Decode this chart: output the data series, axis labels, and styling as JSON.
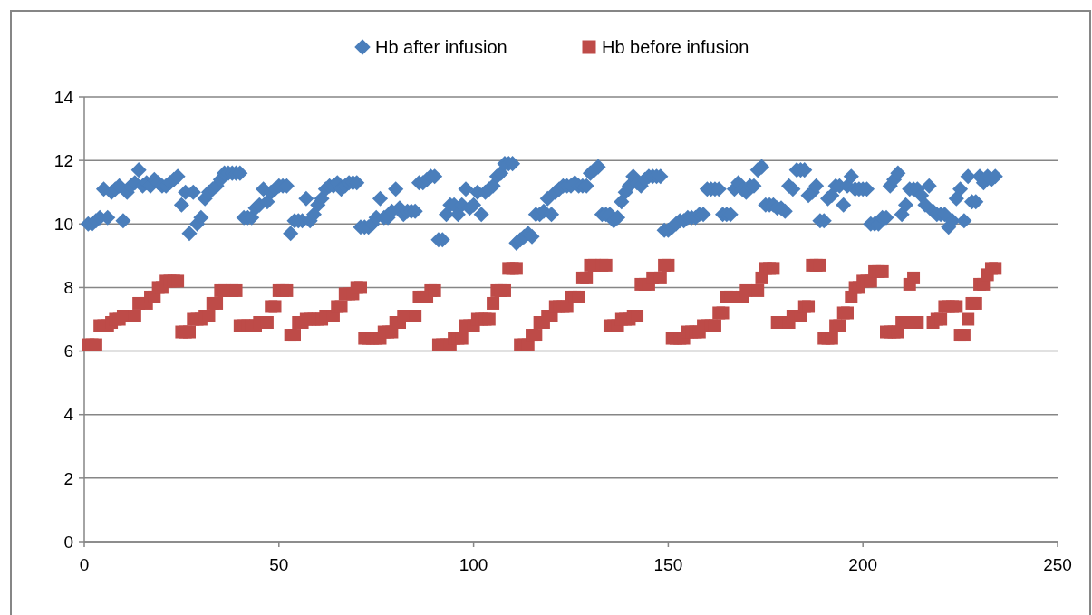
{
  "chart_data": {
    "type": "scatter",
    "legend": "top",
    "grid": "y",
    "xlim": [
      0,
      250
    ],
    "xticks": [
      0,
      50,
      100,
      150,
      200,
      250
    ],
    "ylim": [
      0,
      14
    ],
    "yticks": [
      0,
      2,
      4,
      6,
      8,
      10,
      12,
      14
    ],
    "x": [
      1,
      2,
      3,
      4,
      5,
      6,
      7,
      8,
      9,
      10,
      11,
      12,
      13,
      14,
      15,
      16,
      17,
      18,
      19,
      20,
      21,
      22,
      23,
      24,
      25,
      26,
      27,
      28,
      29,
      30,
      31,
      32,
      33,
      34,
      35,
      36,
      37,
      38,
      39,
      40,
      41,
      42,
      43,
      44,
      45,
      46,
      47,
      48,
      49,
      50,
      51,
      52,
      53,
      54,
      55,
      56,
      57,
      58,
      59,
      60,
      61,
      62,
      63,
      64,
      65,
      66,
      67,
      68,
      69,
      70,
      71,
      72,
      73,
      74,
      75,
      76,
      77,
      78,
      79,
      80,
      81,
      82,
      83,
      84,
      85,
      86,
      87,
      88,
      89,
      90,
      91,
      92,
      93,
      94,
      95,
      96,
      97,
      98,
      99,
      100,
      101,
      102,
      103,
      104,
      105,
      106,
      107,
      108,
      109,
      110,
      111,
      112,
      113,
      114,
      115,
      116,
      117,
      118,
      119,
      120,
      121,
      122,
      123,
      124,
      125,
      126,
      127,
      128,
      129,
      130,
      131,
      132,
      133,
      134,
      135,
      136,
      137,
      138,
      139,
      140,
      141,
      142,
      143,
      144,
      145,
      146,
      147,
      148,
      149,
      150,
      151,
      152,
      153,
      154,
      155,
      156,
      157,
      158,
      159,
      160,
      161,
      162,
      163,
      164,
      165,
      166,
      167,
      168,
      169,
      170,
      171,
      172,
      173,
      174,
      175,
      176,
      177,
      178,
      179,
      180,
      181,
      182,
      183,
      184,
      185,
      186,
      187,
      188,
      189,
      190,
      191,
      192,
      193,
      194,
      195,
      196,
      197,
      198,
      199,
      200,
      201,
      202,
      203,
      204,
      205,
      206,
      207,
      208,
      209,
      210,
      211,
      212,
      213,
      214,
      215,
      216,
      217,
      218,
      219,
      220,
      221,
      222,
      223,
      224,
      225,
      226,
      227,
      228,
      229,
      230,
      231,
      232,
      233,
      234
    ],
    "series": [
      {
        "name": "Hb after infusion",
        "color": "#4a7ebb",
        "marker": "diamond",
        "values": [
          10.0,
          10.0,
          10.1,
          10.2,
          11.1,
          10.2,
          11.0,
          11.1,
          11.2,
          10.1,
          11.0,
          11.2,
          11.3,
          11.7,
          11.2,
          11.3,
          11.2,
          11.4,
          11.3,
          11.2,
          11.2,
          11.3,
          11.4,
          11.5,
          10.6,
          11.0,
          9.7,
          11.0,
          10.0,
          10.2,
          10.8,
          11.0,
          11.1,
          11.2,
          11.4,
          11.6,
          11.6,
          11.6,
          11.6,
          11.6,
          10.2,
          10.2,
          10.2,
          10.5,
          10.6,
          11.1,
          10.7,
          11.0,
          11.1,
          11.2,
          11.2,
          11.2,
          9.7,
          10.1,
          10.1,
          10.1,
          10.8,
          10.1,
          10.3,
          10.6,
          10.8,
          11.1,
          11.2,
          11.2,
          11.3,
          11.1,
          11.2,
          11.3,
          11.3,
          11.3,
          9.9,
          9.9,
          9.9,
          10.0,
          10.2,
          10.8,
          10.2,
          10.2,
          10.4,
          11.1,
          10.5,
          10.3,
          10.4,
          10.4,
          10.4,
          11.3,
          11.3,
          11.4,
          11.5,
          11.5,
          9.5,
          9.5,
          10.3,
          10.6,
          10.6,
          10.3,
          10.6,
          11.1,
          10.5,
          10.6,
          11.0,
          10.3,
          11.0,
          11.1,
          11.2,
          11.5,
          11.6,
          11.9,
          11.9,
          11.9,
          9.4,
          9.5,
          9.6,
          9.7,
          9.6,
          10.3,
          10.3,
          10.4,
          10.8,
          10.3,
          11.0,
          11.1,
          11.2,
          11.2,
          11.2,
          11.3,
          11.2,
          11.2,
          11.2,
          11.6,
          11.7,
          11.8,
          10.3,
          10.3,
          10.3,
          10.1,
          10.2,
          10.7,
          11.0,
          11.2,
          11.5,
          11.3,
          11.2,
          11.4,
          11.5,
          11.5,
          11.5,
          11.5,
          9.8,
          9.8,
          9.9,
          10.0,
          10.1,
          10.1,
          10.2,
          10.2,
          10.2,
          10.3,
          10.3,
          11.1,
          11.1,
          11.1,
          11.1,
          10.3,
          10.3,
          10.3,
          11.1,
          11.3,
          11.1,
          11.0,
          11.2,
          11.2,
          11.7,
          11.8,
          10.6,
          10.6,
          10.6,
          10.5,
          10.5,
          10.4,
          11.2,
          11.1,
          11.7,
          11.7,
          11.7,
          10.9,
          11.0,
          11.2,
          10.1,
          10.1,
          10.8,
          10.9,
          11.2,
          11.2,
          10.6,
          11.2,
          11.5,
          11.1,
          11.1,
          11.1,
          11.1,
          10.0,
          10.0,
          10.0,
          10.2,
          10.2,
          11.2,
          11.4,
          11.6,
          10.3,
          10.6,
          11.1,
          11.1,
          11.1,
          10.9,
          10.6,
          11.2,
          10.4,
          10.3,
          10.3,
          10.3,
          9.9,
          10.1,
          10.8,
          11.1,
          10.1,
          11.5,
          10.7,
          10.7,
          11.5,
          11.3,
          11.5,
          11.4,
          11.5
        ]
      },
      {
        "name": "Hb before infusion",
        "color": "#be4b48",
        "marker": "square",
        "x": [
          1,
          2,
          3,
          4,
          5,
          6,
          7,
          8,
          9,
          10,
          13,
          14,
          16,
          17,
          18,
          19,
          20,
          21,
          22,
          23,
          24,
          25,
          26,
          27,
          28,
          29,
          30,
          31,
          32,
          33,
          34,
          35,
          36,
          38,
          39,
          40,
          41,
          42,
          43,
          44,
          45,
          47,
          48,
          49,
          50,
          51,
          52,
          53,
          54,
          55,
          56,
          57,
          58,
          59,
          60,
          61,
          62,
          64,
          65,
          66,
          67,
          68,
          69,
          70,
          71,
          72,
          73,
          74,
          75,
          76,
          77,
          78,
          79,
          80,
          81,
          82,
          85,
          86,
          87,
          88,
          89,
          90,
          91,
          92,
          93,
          94,
          95,
          96,
          97,
          98,
          99,
          100,
          101,
          102,
          103,
          104,
          105,
          106,
          107,
          108,
          109,
          110,
          111,
          112,
          113,
          114,
          115,
          116,
          117,
          118,
          119,
          120,
          121,
          122,
          123,
          124,
          125,
          126,
          127,
          128,
          129,
          130,
          131,
          133,
          134,
          135,
          136,
          137,
          138,
          139,
          140,
          141,
          142,
          143,
          144,
          145,
          146,
          148,
          149,
          150,
          151,
          152,
          153,
          154,
          155,
          156,
          157,
          158,
          159,
          160,
          161,
          162,
          163,
          164,
          165,
          166,
          169,
          170,
          173,
          174,
          175,
          176,
          177,
          178,
          181,
          182,
          184,
          185,
          186,
          187,
          188,
          189,
          190,
          191,
          192,
          193,
          194,
          195,
          196,
          197,
          198,
          199,
          200,
          201,
          202,
          203,
          204,
          205,
          206,
          207,
          208,
          209,
          210,
          211,
          212,
          213,
          214,
          218,
          219,
          220,
          221,
          222,
          223,
          224,
          225,
          226,
          227,
          228,
          229,
          230,
          231,
          232,
          233,
          234
        ],
        "values": [
          6.2,
          6.2,
          6.2,
          6.8,
          6.8,
          6.8,
          6.9,
          7.0,
          7.0,
          7.1,
          7.1,
          7.5,
          7.5,
          7.7,
          7.7,
          8.0,
          8.0,
          8.2,
          8.2,
          8.2,
          8.2,
          6.6,
          6.6,
          6.6,
          7.0,
          7.0,
          7.0,
          7.1,
          7.1,
          7.5,
          7.5,
          7.9,
          7.9,
          7.9,
          7.9,
          6.8,
          6.8,
          6.8,
          6.8,
          6.8,
          6.9,
          6.9,
          7.4,
          7.4,
          7.9,
          7.9,
          7.9,
          6.5,
          6.5,
          6.9,
          6.9,
          7.0,
          7.0,
          7.0,
          7.0,
          7.0,
          7.1,
          7.1,
          7.4,
          7.4,
          7.8,
          7.8,
          7.8,
          8.0,
          8.0,
          6.4,
          6.4,
          6.4,
          6.4,
          6.4,
          6.6,
          6.6,
          6.6,
          6.9,
          6.9,
          7.1,
          7.1,
          7.7,
          7.7,
          7.7,
          7.9,
          7.9,
          6.2,
          6.2,
          6.2,
          6.2,
          6.4,
          6.4,
          6.4,
          6.8,
          6.8,
          6.8,
          7.0,
          7.0,
          7.0,
          7.0,
          7.5,
          7.9,
          7.9,
          7.9,
          8.6,
          8.6,
          8.6,
          6.2,
          6.2,
          6.2,
          6.5,
          6.5,
          6.9,
          6.9,
          7.1,
          7.1,
          7.4,
          7.4,
          7.4,
          7.4,
          7.7,
          7.7,
          7.7,
          8.3,
          8.3,
          8.7,
          8.7,
          8.7,
          8.7,
          6.8,
          6.8,
          6.8,
          7.0,
          7.0,
          7.0,
          7.1,
          7.1,
          8.1,
          8.1,
          8.1,
          8.3,
          8.3,
          8.7,
          8.7,
          6.4,
          6.4,
          6.4,
          6.4,
          6.6,
          6.6,
          6.6,
          6.6,
          6.8,
          6.8,
          6.8,
          6.8,
          7.2,
          7.2,
          7.7,
          7.7,
          7.7,
          7.9,
          7.9,
          8.3,
          8.6,
          8.6,
          8.6,
          6.9,
          6.9,
          7.1,
          7.1,
          7.4,
          7.4,
          8.7,
          8.7,
          8.7,
          6.4,
          6.4,
          6.4,
          6.8,
          6.8,
          7.2,
          7.2,
          7.7,
          8.0,
          8.0,
          8.2,
          8.2,
          8.2,
          8.5,
          8.5,
          8.5,
          6.6,
          6.6,
          6.6,
          6.6,
          6.9,
          6.9,
          8.1,
          8.3,
          6.9,
          6.9,
          7.0,
          7.0,
          7.4,
          7.4,
          7.4,
          7.4,
          6.5,
          6.5,
          7.0,
          7.5,
          7.5,
          8.1,
          8.1,
          8.4,
          8.6,
          8.6
        ]
      }
    ]
  }
}
